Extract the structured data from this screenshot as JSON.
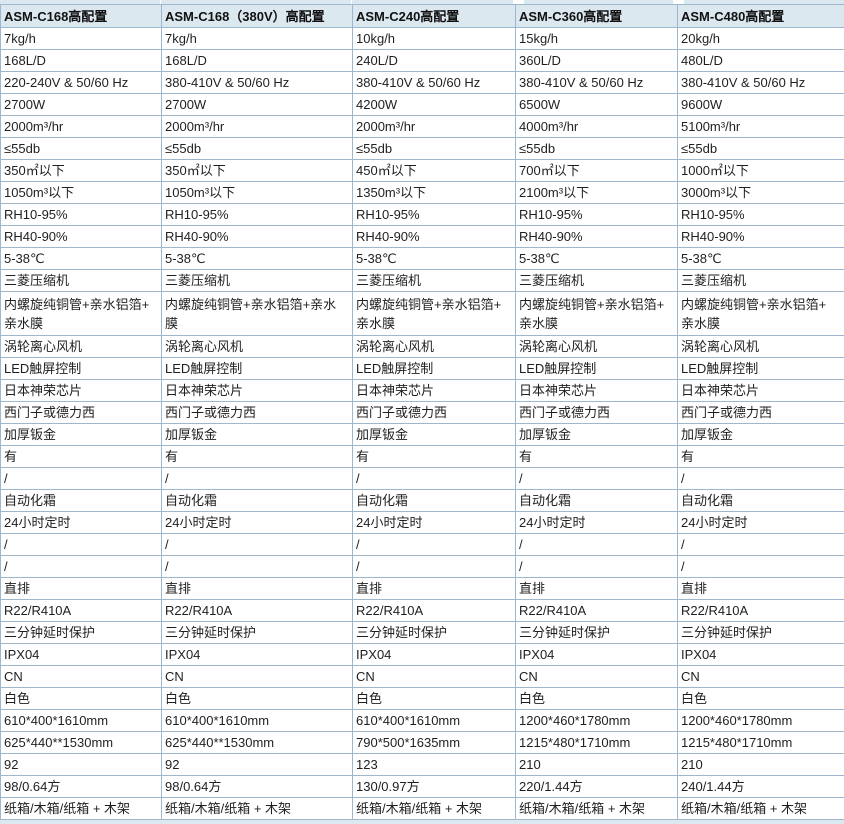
{
  "colors": {
    "header_background": "#dbe8f0",
    "grid_line": "#9eb6ce",
    "text": "#1f1f1f",
    "cell_background": "#ffffff"
  },
  "table": {
    "columns": [
      "ASM-C168高配置",
      "ASM-C168（380V）高配置",
      "ASM-C240高配置",
      "ASM-C360高配置",
      "ASM-C480高配置"
    ],
    "rows": [
      [
        "7kg/h",
        "7kg/h",
        "10kg/h",
        "15kg/h",
        "20kg/h"
      ],
      [
        "168L/D",
        "168L/D",
        "240L/D",
        "360L/D",
        "480L/D"
      ],
      [
        "220-240V & 50/60 Hz",
        "380-410V & 50/60 Hz",
        "380-410V & 50/60 Hz",
        "380-410V & 50/60 Hz",
        "380-410V & 50/60 Hz"
      ],
      [
        "2700W",
        "2700W",
        "4200W",
        "6500W",
        "9600W"
      ],
      [
        "2000m³/hr",
        "2000m³/hr",
        "2000m³/hr",
        "4000m³/hr",
        "5100m³/hr"
      ],
      [
        "≤55db",
        "≤55db",
        "≤55db",
        "≤55db",
        "≤55db"
      ],
      [
        "350㎡以下",
        "350㎡以下",
        "450㎡以下",
        "700㎡以下",
        "1000㎡以下"
      ],
      [
        "1050m³以下",
        "1050m³以下",
        "1350m³以下",
        "2100m³以下",
        "3000m³以下"
      ],
      [
        "RH10-95%",
        "RH10-95%",
        "RH10-95%",
        "RH10-95%",
        "RH10-95%"
      ],
      [
        "RH40-90%",
        "RH40-90%",
        "RH40-90%",
        "RH40-90%",
        "RH40-90%"
      ],
      [
        "5-38℃",
        "5-38℃",
        "5-38℃",
        "5-38℃",
        "5-38℃"
      ],
      [
        "三菱压缩机",
        "三菱压缩机",
        "三菱压缩机",
        "三菱压缩机",
        "三菱压缩机"
      ],
      [
        "内螺旋纯铜管+亲水铝箔+\n亲水膜",
        "内螺旋纯铜管+亲水铝箔+亲水\n膜",
        "内螺旋纯铜管+亲水铝箔+\n亲水膜",
        "内螺旋纯铜管+亲水铝箔+\n亲水膜",
        "内螺旋纯铜管+亲水铝箔+\n亲水膜"
      ],
      [
        "涡轮离心风机",
        "涡轮离心风机",
        "涡轮离心风机",
        "涡轮离心风机",
        "涡轮离心风机"
      ],
      [
        "LED触屏控制",
        "LED触屏控制",
        "LED触屏控制",
        "LED触屏控制",
        "LED触屏控制"
      ],
      [
        "日本神荣芯片",
        "日本神荣芯片",
        "日本神荣芯片",
        "日本神荣芯片",
        "日本神荣芯片"
      ],
      [
        "西门子或德力西",
        "西门子或德力西",
        "西门子或德力西",
        "西门子或德力西",
        "西门子或德力西"
      ],
      [
        "加厚钣金",
        "加厚钣金",
        "加厚钣金",
        "加厚钣金",
        "加厚钣金"
      ],
      [
        "有",
        "有",
        "有",
        "有",
        "有"
      ],
      [
        "/",
        "/",
        "/",
        "/",
        "/"
      ],
      [
        "自动化霜",
        "自动化霜",
        "自动化霜",
        "自动化霜",
        "自动化霜"
      ],
      [
        "24小时定时",
        "24小时定时",
        "24小时定时",
        "24小时定时",
        "24小时定时"
      ],
      [
        "/",
        "/",
        "/",
        "/",
        "/"
      ],
      [
        "/",
        "/",
        "/",
        "/",
        "/"
      ],
      [
        "直排",
        "直排",
        "直排",
        "直排",
        "直排"
      ],
      [
        "R22/R410A",
        "R22/R410A",
        "R22/R410A",
        "R22/R410A",
        "R22/R410A"
      ],
      [
        "三分钟延时保护",
        "三分钟延时保护",
        "三分钟延时保护",
        "三分钟延时保护",
        "三分钟延时保护"
      ],
      [
        "IPX04",
        "IPX04",
        "IPX04",
        "IPX04",
        "IPX04"
      ],
      [
        "CN",
        "CN",
        "CN",
        "CN",
        "CN"
      ],
      [
        "白色",
        "白色",
        "白色",
        "白色",
        "白色"
      ],
      [
        "610*400*1610mm",
        "610*400*1610mm",
        "610*400*1610mm",
        "1200*460*1780mm",
        "1200*460*1780mm"
      ],
      [
        "625*440**1530mm",
        "625*440**1530mm",
        "790*500*1635mm",
        "1215*480*1710mm",
        "1215*480*1710mm"
      ],
      [
        "92",
        "92",
        "123",
        "210",
        "210"
      ],
      [
        "98/0.64方",
        "98/0.64方",
        "130/0.97方",
        "220/1.44方",
        "240/1.44方"
      ],
      [
        "纸箱/木箱/纸箱 + 木架",
        "纸箱/木箱/纸箱 + 木架",
        "纸箱/木箱/纸箱 + 木架",
        "纸箱/木箱/纸箱 + 木架",
        "纸箱/木箱/纸箱 + 木架"
      ]
    ]
  }
}
